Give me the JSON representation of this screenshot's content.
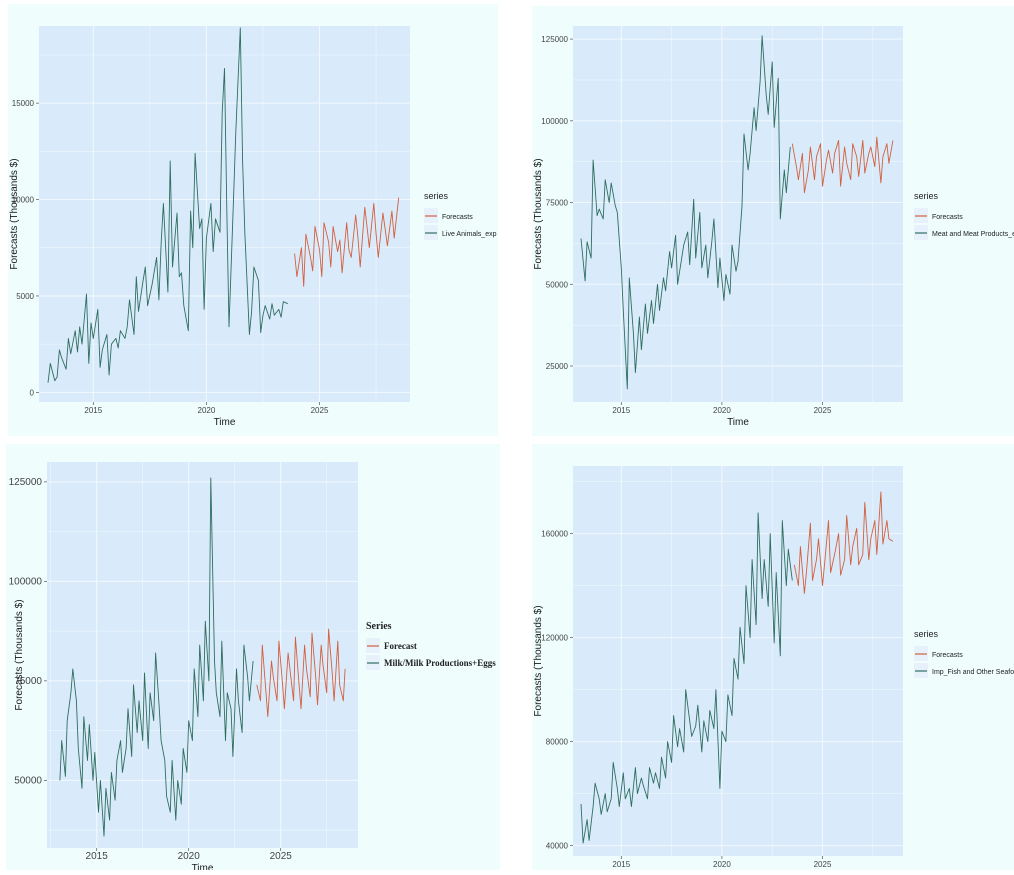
{
  "colors": {
    "panel_bg": "#effdfd",
    "plot_bg": "#d9ebfb",
    "grid": "#f2f8fe",
    "history": "#2f6e5f",
    "forecast": "#d2603f",
    "tick_text": "#444444",
    "axis_title": "#1a1a1a"
  },
  "chart_data": [
    {
      "type": "line",
      "xlabel": "Time",
      "ylabel": "Forecasts (Thousands $)",
      "xlim": [
        2012.6,
        2029.0
      ],
      "ylim": [
        -500,
        19000
      ],
      "xticks": [
        2015,
        2020,
        2025
      ],
      "yticks": [
        0,
        5000,
        10000,
        15000
      ],
      "legend": {
        "title": "series",
        "position": "right"
      },
      "series": [
        {
          "name": "Live Animals_exp",
          "role": "history",
          "x": [
            2013.0,
            2013.1,
            2013.3,
            2013.4,
            2013.5,
            2013.6,
            2013.8,
            2013.9,
            2014.0,
            2014.2,
            2014.3,
            2014.4,
            2014.5,
            2014.7,
            2014.8,
            2014.9,
            2015.0,
            2015.2,
            2015.3,
            2015.4,
            2015.6,
            2015.7,
            2015.8,
            2016.0,
            2016.1,
            2016.2,
            2016.4,
            2016.5,
            2016.6,
            2016.8,
            2016.9,
            2017.0,
            2017.2,
            2017.3,
            2017.4,
            2017.6,
            2017.8,
            2017.9,
            2018.0,
            2018.1,
            2018.3,
            2018.4,
            2018.5,
            2018.7,
            2018.8,
            2018.9,
            2019.0,
            2019.2,
            2019.3,
            2019.4,
            2019.5,
            2019.7,
            2019.8,
            2019.9,
            2020.0,
            2020.2,
            2020.3,
            2020.4,
            2020.6,
            2020.7,
            2020.8,
            2020.9,
            2021.0,
            2021.2,
            2021.3,
            2021.5,
            2021.6,
            2021.7,
            2021.9,
            2022.0,
            2022.1,
            2022.3,
            2022.4,
            2022.5,
            2022.6,
            2022.8,
            2022.9,
            2023.0,
            2023.2,
            2023.3,
            2023.4,
            2023.6
          ],
          "y": [
            500,
            1500,
            600,
            800,
            2200,
            1800,
            1200,
            2800,
            2000,
            3200,
            2100,
            3400,
            2500,
            5100,
            1500,
            3600,
            2800,
            4300,
            1300,
            2200,
            3000,
            900,
            2500,
            2800,
            2300,
            3200,
            2800,
            3400,
            4800,
            3000,
            6000,
            4200,
            5800,
            6500,
            4500,
            5600,
            7000,
            4800,
            7800,
            9800,
            5200,
            12000,
            6500,
            9300,
            6000,
            6200,
            4500,
            3200,
            9400,
            7500,
            12400,
            8500,
            9000,
            4300,
            8000,
            9800,
            7300,
            9000,
            8300,
            14500,
            16800,
            9500,
            3400,
            10000,
            13500,
            18900,
            12000,
            8200,
            3000,
            4200,
            6500,
            5800,
            3100,
            4000,
            4500,
            3800,
            4600,
            4000,
            4300,
            3900,
            4700,
            4600
          ]
        },
        {
          "name": "Forecasts",
          "role": "forecast",
          "x": [
            2023.9,
            2024.0,
            2024.2,
            2024.3,
            2024.4,
            2024.6,
            2024.7,
            2024.8,
            2025.0,
            2025.1,
            2025.2,
            2025.4,
            2025.5,
            2025.6,
            2025.8,
            2025.9,
            2026.0,
            2026.2,
            2026.3,
            2026.4,
            2026.6,
            2026.7,
            2026.8,
            2027.0,
            2027.1,
            2027.2,
            2027.4,
            2027.5,
            2027.6,
            2027.8,
            2027.9,
            2028.0,
            2028.2,
            2028.3,
            2028.5
          ],
          "y": [
            7200,
            6000,
            7500,
            5500,
            8200,
            7000,
            6300,
            8600,
            7400,
            6000,
            8800,
            7800,
            6500,
            8600,
            7300,
            7900,
            6200,
            8800,
            7400,
            7000,
            9200,
            8000,
            6500,
            9600,
            8600,
            7500,
            9800,
            8200,
            7000,
            9300,
            8500,
            7600,
            9400,
            8000,
            10100
          ]
        }
      ]
    },
    {
      "type": "line",
      "xlabel": "Time",
      "ylabel": "Forecasts (Thousands $)",
      "xlim": [
        2012.6,
        2029.0
      ],
      "ylim": [
        14000,
        129000
      ],
      "xticks": [
        2015,
        2020,
        2025
      ],
      "yticks": [
        25000,
        50000,
        75000,
        100000,
        125000
      ],
      "legend": {
        "title": "series",
        "position": "right"
      },
      "series": [
        {
          "name": "Meat and Meat Products_exp",
          "role": "history",
          "x": [
            2013.0,
            2013.2,
            2013.3,
            2013.5,
            2013.6,
            2013.8,
            2013.9,
            2014.1,
            2014.2,
            2014.4,
            2014.5,
            2014.7,
            2014.8,
            2015.0,
            2015.1,
            2015.3,
            2015.4,
            2015.6,
            2015.7,
            2015.9,
            2016.0,
            2016.2,
            2016.3,
            2016.5,
            2016.6,
            2016.8,
            2016.9,
            2017.1,
            2017.2,
            2017.4,
            2017.5,
            2017.7,
            2017.8,
            2018.0,
            2018.1,
            2018.3,
            2018.4,
            2018.6,
            2018.7,
            2018.9,
            2019.0,
            2019.2,
            2019.3,
            2019.5,
            2019.6,
            2019.8,
            2019.9,
            2020.1,
            2020.2,
            2020.4,
            2020.5,
            2020.7,
            2020.8,
            2021.0,
            2021.1,
            2021.3,
            2021.4,
            2021.6,
            2021.7,
            2021.9,
            2022.0,
            2022.2,
            2022.3,
            2022.5,
            2022.6,
            2022.8,
            2022.9,
            2023.1,
            2023.2,
            2023.4
          ],
          "y": [
            64000,
            51000,
            63000,
            58000,
            88000,
            71000,
            73000,
            70000,
            82000,
            75000,
            81000,
            74000,
            72000,
            55000,
            42000,
            18000,
            52000,
            35000,
            23000,
            40000,
            30000,
            44000,
            35000,
            45000,
            38000,
            50000,
            42000,
            52000,
            48000,
            60000,
            55000,
            65000,
            50000,
            58000,
            62000,
            66000,
            56000,
            76000,
            58000,
            72000,
            55000,
            62000,
            52000,
            63000,
            70000,
            49000,
            58000,
            45000,
            53000,
            47000,
            62000,
            54000,
            57000,
            74000,
            96000,
            85000,
            90000,
            104000,
            97000,
            112000,
            126000,
            108000,
            102000,
            118000,
            98000,
            113000,
            70000,
            85000,
            78000,
            92000
          ]
        },
        {
          "name": "Forecasts",
          "role": "forecast",
          "x": [
            2023.5,
            2023.7,
            2023.8,
            2024.0,
            2024.1,
            2024.3,
            2024.4,
            2024.6,
            2024.7,
            2024.9,
            2025.0,
            2025.2,
            2025.3,
            2025.5,
            2025.6,
            2025.8,
            2025.9,
            2026.1,
            2026.2,
            2026.4,
            2026.5,
            2026.7,
            2026.8,
            2027.0,
            2027.1,
            2027.3,
            2027.4,
            2027.6,
            2027.7,
            2027.9,
            2028.0,
            2028.2,
            2028.3,
            2028.5
          ],
          "y": [
            93000,
            86000,
            82000,
            90000,
            78000,
            85000,
            92000,
            82000,
            89000,
            93000,
            80000,
            88000,
            91000,
            84000,
            90000,
            94000,
            80000,
            92000,
            87000,
            82000,
            93000,
            89000,
            83000,
            94000,
            84000,
            90000,
            92000,
            86000,
            95000,
            81000,
            89000,
            93000,
            87000,
            94000
          ]
        }
      ]
    },
    {
      "type": "line",
      "xlabel": "Time",
      "ylabel": "Forecasts (Thousands $)",
      "xlim": [
        2012.3,
        2029.2
      ],
      "ylim": [
        33000,
        130000
      ],
      "xticks": [
        2015,
        2020,
        2025
      ],
      "yticks": [
        50000,
        75000,
        100000,
        125000
      ],
      "legend": {
        "title": "Series",
        "position": "right"
      },
      "series": [
        {
          "name": "Milk/Milk Productions+Eggs",
          "role": "history",
          "x": [
            2013.0,
            2013.1,
            2013.3,
            2013.4,
            2013.6,
            2013.7,
            2013.9,
            2014.0,
            2014.2,
            2014.3,
            2014.5,
            2014.6,
            2014.8,
            2014.9,
            2015.1,
            2015.2,
            2015.4,
            2015.5,
            2015.7,
            2015.8,
            2016.0,
            2016.1,
            2016.3,
            2016.4,
            2016.6,
            2016.7,
            2016.9,
            2017.0,
            2017.2,
            2017.3,
            2017.5,
            2017.6,
            2017.8,
            2017.9,
            2018.1,
            2018.2,
            2018.4,
            2018.5,
            2018.7,
            2018.8,
            2019.0,
            2019.1,
            2019.3,
            2019.4,
            2019.6,
            2019.7,
            2019.9,
            2020.0,
            2020.2,
            2020.3,
            2020.5,
            2020.6,
            2020.8,
            2020.9,
            2021.1,
            2021.2,
            2021.4,
            2021.5,
            2021.7,
            2021.8,
            2022.0,
            2022.1,
            2022.3,
            2022.4,
            2022.6,
            2022.7,
            2022.9,
            2023.0,
            2023.2,
            2023.3,
            2023.5
          ],
          "y": [
            50000,
            60000,
            51000,
            65000,
            72000,
            78000,
            70000,
            58000,
            48000,
            66000,
            55000,
            64000,
            50000,
            57000,
            42000,
            50000,
            36000,
            48000,
            40000,
            52000,
            45000,
            55000,
            60000,
            52000,
            58000,
            68000,
            56000,
            74000,
            62000,
            70000,
            60000,
            77000,
            58000,
            72000,
            65000,
            82000,
            68000,
            60000,
            55000,
            46000,
            42000,
            55000,
            40000,
            50000,
            44000,
            58000,
            52000,
            65000,
            60000,
            78000,
            66000,
            84000,
            70000,
            90000,
            75000,
            126000,
            80000,
            72000,
            66000,
            85000,
            60000,
            72000,
            68000,
            56000,
            78000,
            70000,
            62000,
            84000,
            76000,
            70000,
            80000
          ]
        },
        {
          "name": "Forecast",
          "role": "forecast",
          "x": [
            2023.7,
            2023.9,
            2024.0,
            2024.2,
            2024.3,
            2024.5,
            2024.6,
            2024.8,
            2024.9,
            2025.1,
            2025.2,
            2025.4,
            2025.5,
            2025.7,
            2025.8,
            2026.0,
            2026.1,
            2026.3,
            2026.4,
            2026.6,
            2026.7,
            2026.9,
            2027.0,
            2027.2,
            2027.3,
            2027.5,
            2027.6,
            2027.8,
            2027.9,
            2028.1,
            2028.2,
            2028.4,
            2028.5
          ],
          "y": [
            74000,
            70000,
            84000,
            72000,
            66000,
            80000,
            76000,
            70000,
            85000,
            74000,
            68000,
            82000,
            78000,
            70000,
            86000,
            74000,
            68000,
            84000,
            78000,
            71000,
            87000,
            76000,
            69000,
            84000,
            79000,
            72000,
            88000,
            77000,
            70000,
            85000,
            74000,
            70000,
            78000
          ]
        }
      ]
    },
    {
      "type": "line",
      "xlabel": "Time",
      "ylabel": "Forecasts (Thousands $)",
      "xlim": [
        2012.6,
        2029.0
      ],
      "ylim": [
        36000,
        186000
      ],
      "xticks": [
        2015,
        2020,
        2025
      ],
      "yticks": [
        40000,
        80000,
        120000,
        160000
      ],
      "legend": {
        "title": "series",
        "position": "right"
      },
      "series": [
        {
          "name": "Imp_Fish and Other Seafood",
          "role": "history",
          "x": [
            2013.0,
            2013.1,
            2013.3,
            2013.4,
            2013.6,
            2013.7,
            2013.9,
            2014.0,
            2014.2,
            2014.3,
            2014.5,
            2014.6,
            2014.8,
            2014.9,
            2015.1,
            2015.2,
            2015.4,
            2015.5,
            2015.7,
            2015.8,
            2016.0,
            2016.1,
            2016.3,
            2016.4,
            2016.6,
            2016.7,
            2016.9,
            2017.0,
            2017.2,
            2017.3,
            2017.5,
            2017.6,
            2017.8,
            2017.9,
            2018.1,
            2018.2,
            2018.4,
            2018.5,
            2018.7,
            2018.8,
            2019.0,
            2019.1,
            2019.3,
            2019.4,
            2019.6,
            2019.7,
            2019.9,
            2020.0,
            2020.2,
            2020.3,
            2020.5,
            2020.6,
            2020.8,
            2020.9,
            2021.1,
            2021.2,
            2021.4,
            2021.5,
            2021.7,
            2021.8,
            2022.0,
            2022.1,
            2022.3,
            2022.4,
            2022.6,
            2022.7,
            2022.9,
            2023.0,
            2023.2,
            2023.3,
            2023.5
          ],
          "y": [
            56000,
            41000,
            50000,
            42000,
            55000,
            64000,
            58000,
            52000,
            60000,
            53000,
            58000,
            72000,
            62000,
            55000,
            68000,
            58000,
            62000,
            55000,
            70000,
            60000,
            66000,
            63000,
            58000,
            70000,
            64000,
            68000,
            62000,
            74000,
            66000,
            80000,
            72000,
            90000,
            78000,
            85000,
            76000,
            100000,
            88000,
            82000,
            86000,
            94000,
            76000,
            88000,
            80000,
            92000,
            85000,
            100000,
            62000,
            84000,
            80000,
            98000,
            90000,
            112000,
            104000,
            124000,
            110000,
            140000,
            120000,
            150000,
            125000,
            168000,
            135000,
            150000,
            132000,
            160000,
            118000,
            145000,
            113000,
            165000,
            140000,
            154000,
            142000
          ]
        },
        {
          "name": "Forecasts",
          "role": "forecast",
          "x": [
            2023.6,
            2023.8,
            2023.9,
            2024.1,
            2024.2,
            2024.4,
            2024.5,
            2024.7,
            2024.8,
            2025.0,
            2025.1,
            2025.3,
            2025.4,
            2025.6,
            2025.8,
            2025.9,
            2026.1,
            2026.2,
            2026.4,
            2026.5,
            2026.7,
            2026.8,
            2027.0,
            2027.1,
            2027.3,
            2027.4,
            2027.6,
            2027.7,
            2027.9,
            2028.0,
            2028.2,
            2028.3,
            2028.5
          ],
          "y": [
            148000,
            140000,
            155000,
            137000,
            145000,
            164000,
            142000,
            150000,
            158000,
            140000,
            148000,
            165000,
            145000,
            152000,
            160000,
            144000,
            150000,
            167000,
            148000,
            155000,
            162000,
            148000,
            152000,
            172000,
            150000,
            158000,
            165000,
            152000,
            176000,
            156000,
            165000,
            158000,
            157000
          ]
        }
      ]
    }
  ]
}
